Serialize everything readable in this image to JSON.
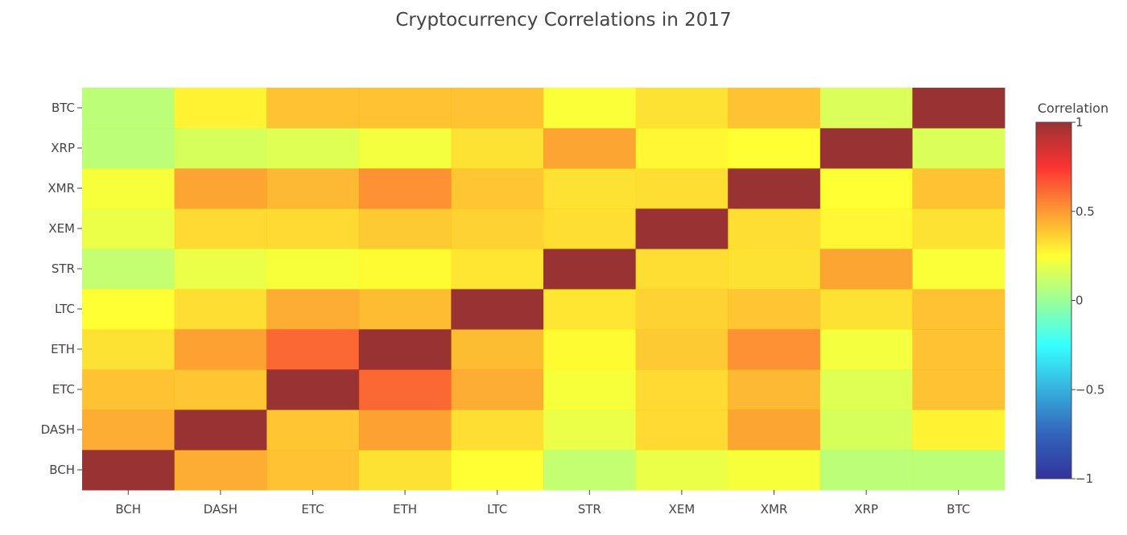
{
  "chart_data": {
    "type": "heatmap",
    "title": "Cryptocurrency Correlations in 2017",
    "x_categories": [
      "BCH",
      "DASH",
      "ETC",
      "ETH",
      "LTC",
      "STR",
      "XEM",
      "XMR",
      "XRP",
      "BTC"
    ],
    "y_categories": [
      "BCH",
      "DASH",
      "ETC",
      "ETH",
      "LTC",
      "STR",
      "XEM",
      "XMR",
      "XRP",
      "BTC"
    ],
    "z": [
      [
        1.0,
        0.45,
        0.4,
        0.32,
        0.25,
        0.1,
        0.2,
        0.23,
        0.08,
        0.08
      ],
      [
        0.45,
        1.0,
        0.39,
        0.48,
        0.33,
        0.2,
        0.34,
        0.47,
        0.15,
        0.28
      ],
      [
        0.4,
        0.39,
        1.0,
        0.62,
        0.45,
        0.23,
        0.34,
        0.42,
        0.17,
        0.4
      ],
      [
        0.32,
        0.48,
        0.62,
        1.0,
        0.41,
        0.26,
        0.38,
        0.52,
        0.22,
        0.4
      ],
      [
        0.25,
        0.33,
        0.45,
        0.41,
        1.0,
        0.31,
        0.36,
        0.39,
        0.32,
        0.4
      ],
      [
        0.1,
        0.2,
        0.23,
        0.26,
        0.31,
        1.0,
        0.33,
        0.32,
        0.47,
        0.24
      ],
      [
        0.2,
        0.34,
        0.34,
        0.38,
        0.36,
        0.33,
        1.0,
        0.33,
        0.27,
        0.32
      ],
      [
        0.23,
        0.47,
        0.42,
        0.52,
        0.39,
        0.32,
        0.33,
        1.0,
        0.25,
        0.4
      ],
      [
        0.08,
        0.15,
        0.17,
        0.22,
        0.32,
        0.47,
        0.27,
        0.25,
        1.0,
        0.16
      ],
      [
        0.08,
        0.28,
        0.4,
        0.4,
        0.4,
        0.24,
        0.32,
        0.4,
        0.16,
        1.0
      ]
    ],
    "zmin": -1,
    "zmax": 1,
    "colorscale": "Jet",
    "colorbar": {
      "title": "Correlation",
      "ticks": [
        {
          "value": 1,
          "label": "1"
        },
        {
          "value": 0.5,
          "label": "0.5"
        },
        {
          "value": 0,
          "label": "0"
        },
        {
          "value": -0.5,
          "label": "−0.5"
        },
        {
          "value": -1,
          "label": "−1"
        }
      ]
    },
    "cell_opacity": 0.8,
    "grid": false,
    "legend_placement": "right"
  }
}
